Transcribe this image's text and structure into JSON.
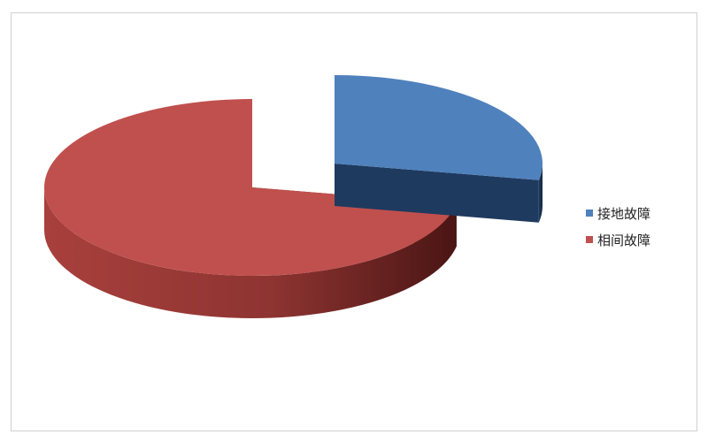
{
  "chart_data": {
    "type": "pie",
    "style": "3d-exploded",
    "categories": [
      "接地故障",
      "相间故障"
    ],
    "values": [
      28,
      72
    ],
    "colors": [
      "#4f81bd",
      "#c0504d"
    ],
    "side_colors": [
      "#1f3a5f",
      "#7a2a28"
    ],
    "legend_position": "right"
  }
}
